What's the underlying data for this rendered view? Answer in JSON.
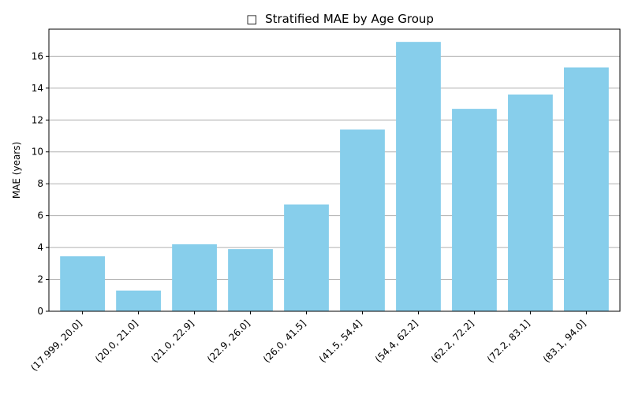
{
  "chart_data": {
    "type": "bar",
    "title_icon": "□",
    "title": "Stratified MAE by Age Group",
    "xlabel": "",
    "ylabel": "MAE (years)",
    "categories": [
      "(17.999, 20.0]",
      "(20.0, 21.0]",
      "(21.0, 22.9]",
      "(22.9, 26.0]",
      "(26.0, 41.5]",
      "(41.5, 54.4]",
      "(54.4, 62.2]",
      "(62.2, 72.2]",
      "(72.2, 83.1]",
      "(83.1, 94.0]"
    ],
    "values": [
      3.45,
      1.3,
      4.2,
      3.9,
      6.7,
      11.4,
      16.9,
      12.7,
      13.6,
      15.3
    ],
    "ylim": [
      0,
      17.7
    ],
    "yticks": [
      0,
      2,
      4,
      6,
      8,
      10,
      12,
      14,
      16
    ],
    "grid": "y",
    "bar_color": "#87CEEB",
    "grid_color": "#b0b0b0"
  }
}
